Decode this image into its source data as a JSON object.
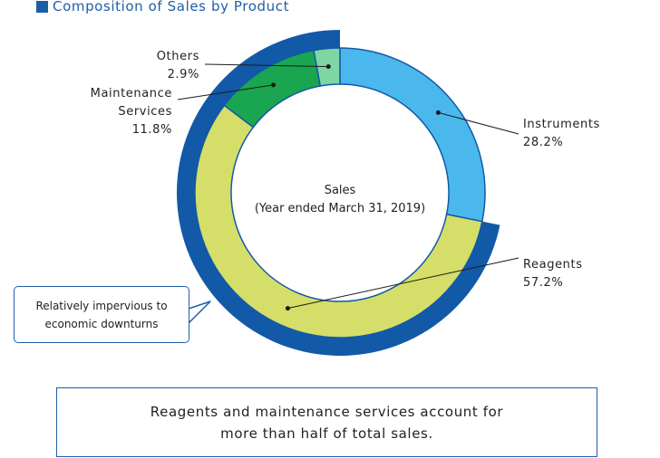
{
  "title": "Composition of Sales by Product",
  "chart_data": {
    "type": "pie",
    "variant": "donut",
    "title": "Composition of Sales by Product",
    "center_label": [
      "Sales",
      "(Year ended March 31, 2019)"
    ],
    "slices": [
      {
        "name": "Instruments",
        "value": 28.2,
        "label": "28.2%",
        "color": "#4ab8ec"
      },
      {
        "name": "Reagents",
        "value": 57.2,
        "label": "57.2%",
        "color": "#d5de68"
      },
      {
        "name": "Maintenance Services",
        "value": 11.8,
        "label": "11.8%",
        "color": "#1aa650"
      },
      {
        "name": "Others",
        "value": 2.9,
        "label": "2.9%",
        "color": "#7dd6a3"
      }
    ],
    "highlight_group": {
      "members": [
        "Reagents",
        "Maintenance Services",
        "Others"
      ],
      "color": "#1259a8"
    }
  },
  "labels": {
    "others": {
      "name": "Others",
      "pct": "2.9%"
    },
    "maintenance": {
      "line1": "Maintenance",
      "line2": "Services",
      "pct": "11.8%"
    },
    "instruments": {
      "name": "Instruments",
      "pct": "28.2%"
    },
    "reagents": {
      "name": "Reagents",
      "pct": "57.2%"
    }
  },
  "callout": {
    "line1": "Relatively impervious to",
    "line2": "economic downturns"
  },
  "summary": {
    "line1": "Reagents and maintenance services account for",
    "line2": "more than half of total sales."
  }
}
